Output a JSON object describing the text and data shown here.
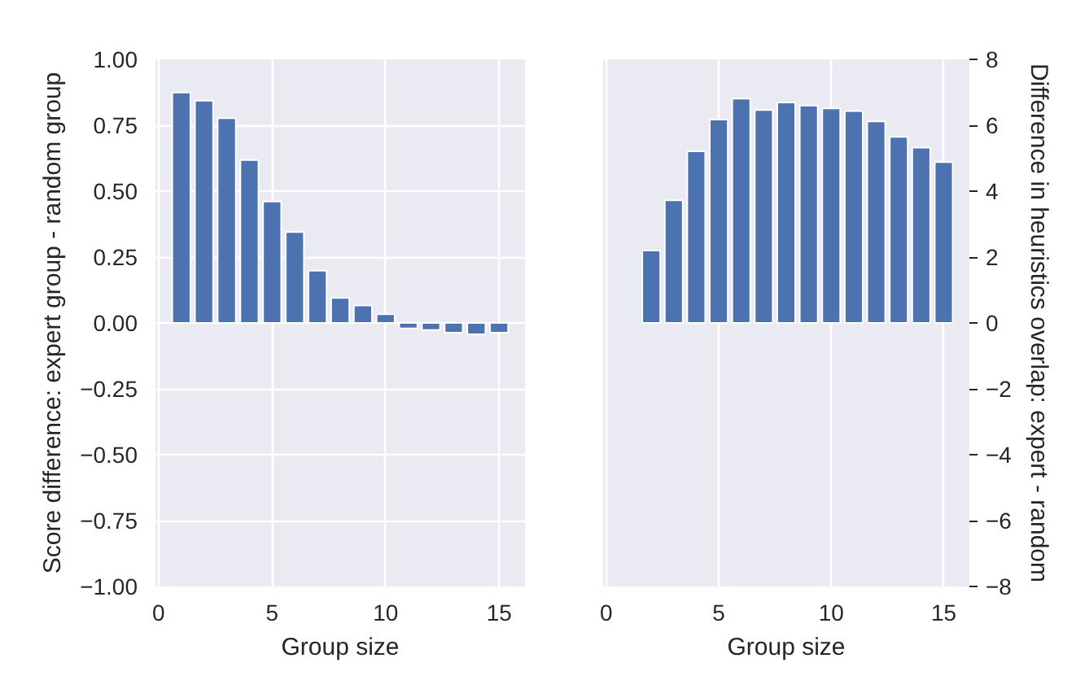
{
  "chart_data": [
    {
      "type": "bar",
      "xlabel": "Group size",
      "ylabel": "Score difference: expert group - random group",
      "grid": true,
      "x": [
        1,
        2,
        3,
        4,
        5,
        6,
        7,
        8,
        9,
        10,
        11,
        12,
        13,
        14,
        15
      ],
      "values": [
        0.874,
        0.843,
        0.777,
        0.618,
        0.461,
        0.345,
        0.198,
        0.095,
        0.066,
        0.033,
        -0.021,
        -0.027,
        -0.037,
        -0.043,
        -0.037
      ],
      "color": "#4c72b0",
      "xlim": [
        -0.14,
        16.14
      ],
      "xticks": [
        0,
        5,
        10,
        15
      ],
      "ylim": [
        -1,
        1
      ],
      "yticks": [
        {
          "value": -1,
          "label": "−1.00"
        },
        {
          "value": -0.75,
          "label": "−0.75"
        },
        {
          "value": -0.5,
          "label": "−0.50"
        },
        {
          "value": -0.25,
          "label": "−0.25"
        },
        {
          "value": 0,
          "label": "0.00"
        },
        {
          "value": 0.25,
          "label": "0.25"
        },
        {
          "value": 0.5,
          "label": "0.50"
        },
        {
          "value": 0.75,
          "label": "0.75"
        },
        {
          "value": 1,
          "label": "1.00"
        }
      ]
    },
    {
      "type": "bar",
      "xlabel": "Group size",
      "y2label": "Difference in heuristics overlap: expert - random",
      "grid": true,
      "series": [
        {
          "axis": "y2",
          "color": "#4c72b0",
          "x": [
            2,
            3,
            4,
            5,
            6,
            7,
            8,
            9,
            10,
            11,
            12,
            13,
            14,
            15
          ],
          "values": [
            2.2,
            3.72,
            5.21,
            6.17,
            6.81,
            6.46,
            6.69,
            6.6,
            6.51,
            6.43,
            6.12,
            5.65,
            5.32,
            4.88
          ]
        }
      ],
      "xlim": [
        -0.14,
        16.14
      ],
      "xticks": [
        0,
        5,
        10,
        15
      ],
      "y2lim": [
        -8,
        8
      ],
      "y2ticks": [
        {
          "value": -8,
          "label": "−8"
        },
        {
          "value": -6,
          "label": "−6"
        },
        {
          "value": -4,
          "label": "−4"
        },
        {
          "value": -2,
          "label": "−2"
        },
        0,
        2,
        4,
        6,
        8
      ]
    }
  ]
}
